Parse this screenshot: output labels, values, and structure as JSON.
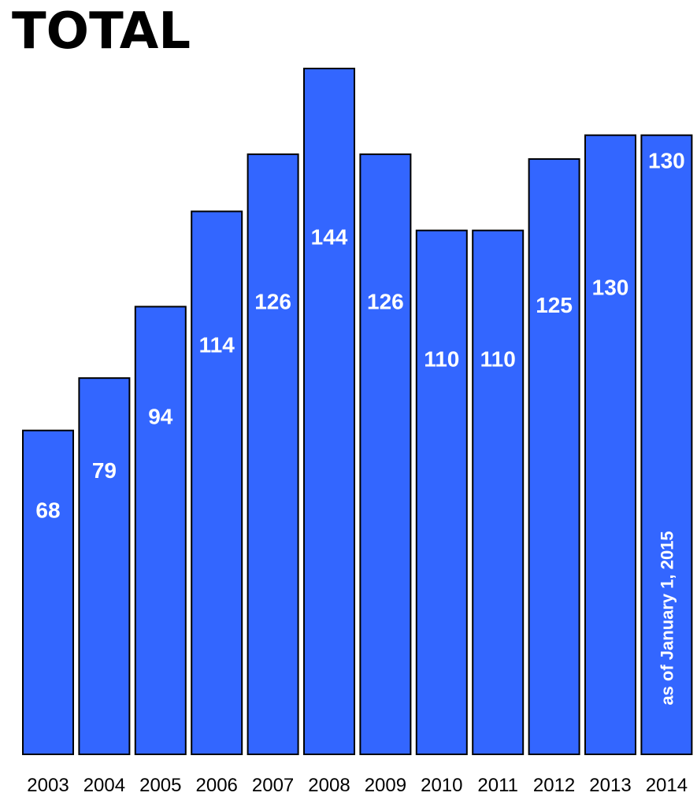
{
  "chart_data": {
    "type": "bar",
    "title": "TOTAL",
    "xlabel": "",
    "ylabel": "",
    "categories": [
      "2003",
      "2004",
      "2005",
      "2006",
      "2007",
      "2008",
      "2009",
      "2010",
      "2011",
      "2012",
      "2013",
      "2014"
    ],
    "values": [
      68,
      79,
      94,
      114,
      126,
      144,
      126,
      110,
      110,
      125,
      130,
      130
    ],
    "ylim": [
      0,
      144
    ],
    "grid": false,
    "bar_color": "#3366ff",
    "annotations": [
      {
        "category": "2014",
        "text": "as of January 1, 2015"
      }
    ]
  }
}
